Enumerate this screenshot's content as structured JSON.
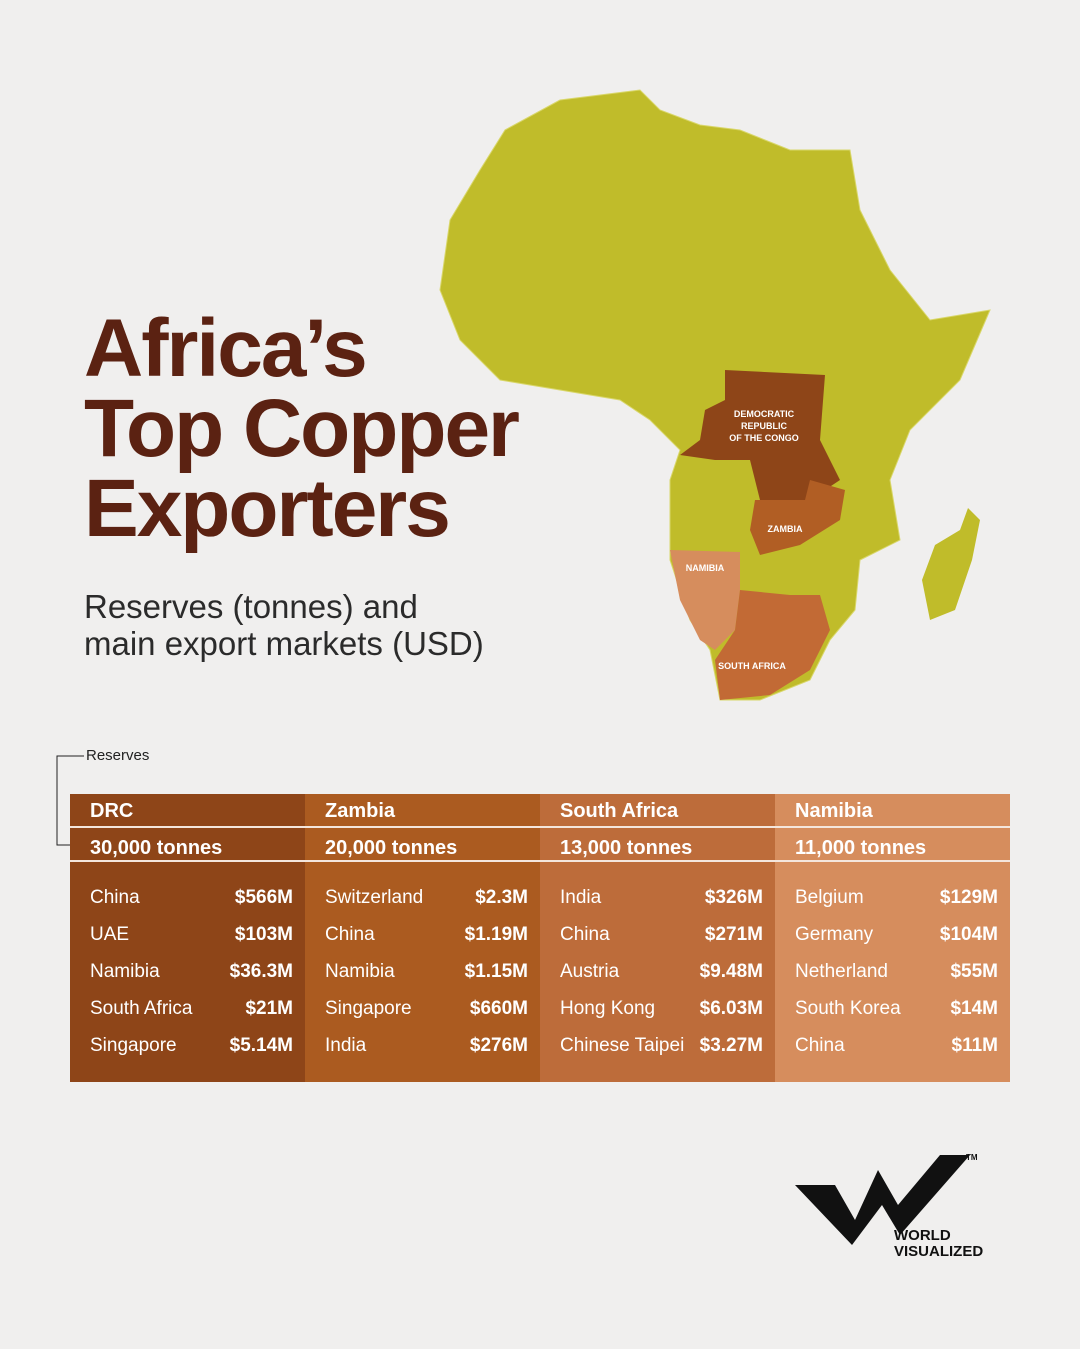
{
  "title": [
    "Africa’s",
    "Top Copper",
    "Exporters"
  ],
  "subtitle": [
    "Reserves (tonnes) and",
    "main export markets (USD)"
  ],
  "map_labels": {
    "drc": [
      "DEMOCRATIC",
      "REPUBLIC",
      "OF THE CONGO"
    ],
    "zambia": "ZAMBIA",
    "namibia": "NAMIBIA",
    "south_africa": "SOUTH AFRICA"
  },
  "annotation": "Reserves",
  "table": {
    "columns": [
      {
        "country": "DRC",
        "reserves": "30,000 tonnes",
        "markets": [
          [
            "China",
            "$566M"
          ],
          [
            "UAE",
            "$103M"
          ],
          [
            "Namibia",
            "$36.3M"
          ],
          [
            "South Africa",
            "$21M"
          ],
          [
            "Singapore",
            "$5.14M"
          ]
        ]
      },
      {
        "country": "Zambia",
        "reserves": "20,000 tonnes",
        "markets": [
          [
            "Switzerland",
            "$2.3M"
          ],
          [
            "China",
            "$1.19M"
          ],
          [
            "Namibia",
            "$1.15M"
          ],
          [
            "Singapore",
            "$660M"
          ],
          [
            "India",
            "$276M"
          ]
        ]
      },
      {
        "country": "South Africa",
        "reserves": "13,000 tonnes",
        "markets": [
          [
            "India",
            "$326M"
          ],
          [
            "China",
            "$271M"
          ],
          [
            "Austria",
            "$9.48M"
          ],
          [
            "Hong Kong",
            "$6.03M"
          ],
          [
            "Chinese Taipei",
            "$3.27M"
          ]
        ]
      },
      {
        "country": "Namibia",
        "reserves": "11,000 tonnes",
        "markets": [
          [
            "Belgium",
            "$129M"
          ],
          [
            "Germany",
            "$104M"
          ],
          [
            "Netherland",
            "$55M"
          ],
          [
            "South Korea",
            "$14M"
          ],
          [
            "China",
            "$11M"
          ]
        ]
      }
    ]
  },
  "logo": {
    "line1": "WORLD",
    "line2": "VISUALIZED",
    "tm": "TM"
  }
}
